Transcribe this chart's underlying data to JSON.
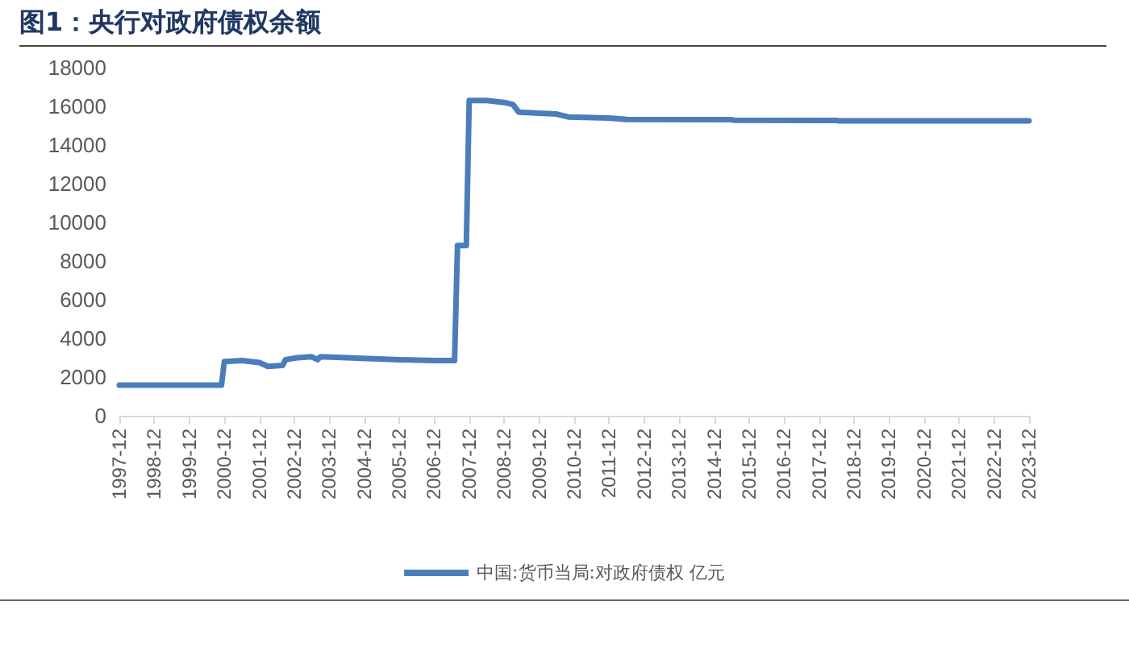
{
  "chart_data": {
    "type": "line",
    "title": "图1：央行对政府债权余额",
    "x": [
      "1997-12",
      "1998-12",
      "1999-12",
      "2000-11",
      "2000-12",
      "2001-06",
      "2001-12",
      "2002-03",
      "2002-08",
      "2002-09",
      "2003-01",
      "2003-06",
      "2003-08",
      "2003-09",
      "2004-06",
      "2005-12",
      "2006-12",
      "2007-07",
      "2007-08",
      "2007-11",
      "2007-12",
      "2008-06",
      "2008-12",
      "2009-03",
      "2009-05",
      "2009-12",
      "2010-06",
      "2010-10",
      "2011-12",
      "2012-06",
      "2015-06",
      "2015-07",
      "2018-06",
      "2018-07",
      "2023-12"
    ],
    "series": [
      {
        "name": "中国:货币当局:对政府债权 亿元",
        "color": "#4a7ebb",
        "values": [
          1583,
          1583,
          1583,
          1583,
          2800,
          2850,
          2750,
          2550,
          2600,
          2900,
          3000,
          3050,
          2900,
          3050,
          3000,
          2900,
          2850,
          2850,
          8800,
          8800,
          16300,
          16300,
          16200,
          16100,
          15700,
          15650,
          15600,
          15450,
          15400,
          15320,
          15310,
          15280,
          15270,
          15250,
          15250
        ]
      }
    ],
    "xlim": [
      "1997-12",
      "2023-12"
    ],
    "xticks": [
      "1997-12",
      "1998-12",
      "1999-12",
      "2000-12",
      "2001-12",
      "2002-12",
      "2003-12",
      "2004-12",
      "2005-12",
      "2006-12",
      "2007-12",
      "2008-12",
      "2009-12",
      "2010-12",
      "2011-12",
      "2012-12",
      "2013-12",
      "2014-12",
      "2015-12",
      "2016-12",
      "2017-12",
      "2018-12",
      "2019-12",
      "2020-12",
      "2021-12",
      "2022-12",
      "2023-12"
    ],
    "ylim": [
      0,
      18000
    ],
    "yticks": [
      0,
      2000,
      4000,
      6000,
      8000,
      10000,
      12000,
      14000,
      16000,
      18000
    ],
    "grid": false,
    "legend": "bottom",
    "marker": "none",
    "line_style": "solid"
  }
}
